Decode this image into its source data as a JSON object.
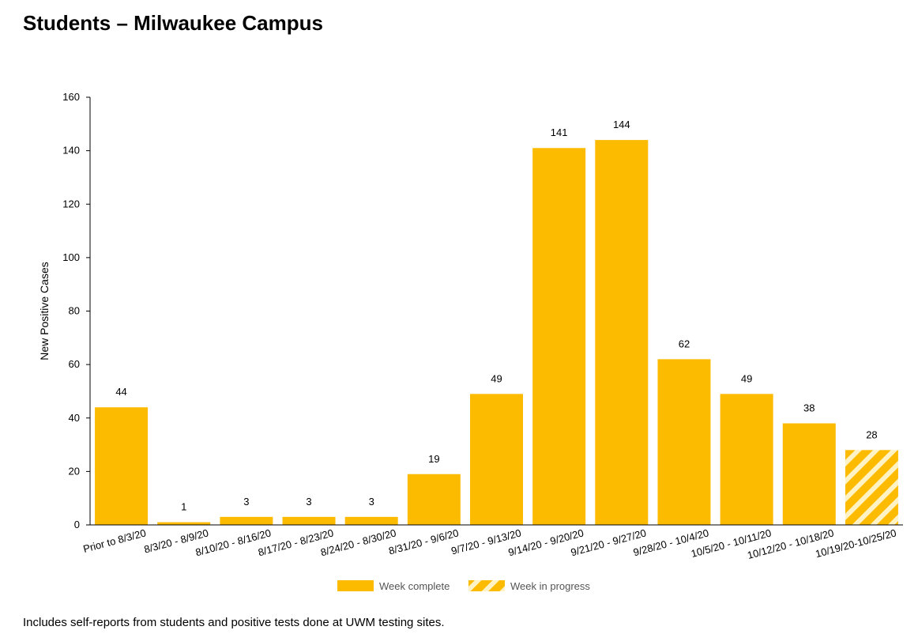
{
  "page_title": "Students – Milwaukee Campus",
  "footnote": "Includes self-reports from students and positive tests done at UWM testing sites.",
  "colors": {
    "bar": "#FDBB00",
    "axis": "#000000",
    "hatch": "#FFF2C4"
  },
  "chart_data": {
    "type": "bar",
    "title": "Students – Milwaukee Campus",
    "xlabel": "",
    "ylabel": "New Positive Cases",
    "ylim": [
      0,
      160
    ],
    "yticks": [
      0,
      20,
      40,
      60,
      80,
      100,
      120,
      140,
      160
    ],
    "grid": false,
    "legend_position": "bottom",
    "categories": [
      "Prior to 8/3/20",
      "8/3/20 - 8/9/20",
      "8/10/20 - 8/16/20",
      "8/17/20 - 8/23/20",
      "8/24/20 - 8/30/20",
      "8/31/20 - 9/6/20",
      "9/7/20 - 9/13/20",
      "9/14/20 - 9/20/20",
      "9/21/20 - 9/27/20",
      "9/28/20 - 10/4/20",
      "10/5/20 - 10/11/20",
      "10/12/20 - 10/18/20",
      "10/19/20-10/25/20"
    ],
    "values": [
      44,
      1,
      3,
      3,
      3,
      19,
      49,
      141,
      144,
      62,
      49,
      38,
      28
    ],
    "status": [
      "complete",
      "complete",
      "complete",
      "complete",
      "complete",
      "complete",
      "complete",
      "complete",
      "complete",
      "complete",
      "complete",
      "complete",
      "in_progress"
    ],
    "legend": [
      {
        "label": "Week complete",
        "pattern": "solid"
      },
      {
        "label": "Week in progress",
        "pattern": "striped"
      }
    ]
  }
}
